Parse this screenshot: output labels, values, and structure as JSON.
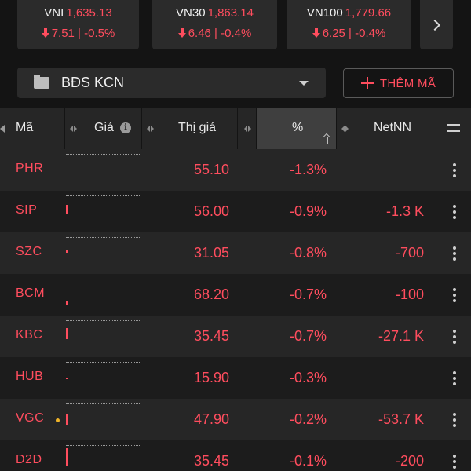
{
  "indices": [
    {
      "name": "VNI",
      "value": "1,635.13",
      "change": "7.51 | -0.5%"
    },
    {
      "name": "VN30",
      "value": "1,863.14",
      "change": "6.46 | -0.4%"
    },
    {
      "name": "VN100",
      "value": "1,779.66",
      "change": "6.25 | -0.4%"
    }
  ],
  "watchlist": {
    "name": "BĐS KCN",
    "add_label": "THÊM MÃ"
  },
  "columns": {
    "symbol": "Mã",
    "price": "Giá",
    "market_price": "Thị giá",
    "percent": "%",
    "net_foreign": "NetNN"
  },
  "rows": [
    {
      "symbol": "PHR",
      "price": "55.10",
      "percent": "-1.3%",
      "net": "",
      "has_dot": false
    },
    {
      "symbol": "SIP",
      "price": "56.00",
      "percent": "-0.9%",
      "net": "-1.3 K",
      "has_dot": false
    },
    {
      "symbol": "SZC",
      "price": "31.05",
      "percent": "-0.8%",
      "net": "-700",
      "has_dot": false
    },
    {
      "symbol": "BCM",
      "price": "68.20",
      "percent": "-0.7%",
      "net": "-100",
      "has_dot": false
    },
    {
      "symbol": "KBC",
      "price": "35.45",
      "percent": "-0.7%",
      "net": "-27.1 K",
      "has_dot": false
    },
    {
      "symbol": "HUB",
      "price": "15.90",
      "percent": "-0.3%",
      "net": "",
      "has_dot": false
    },
    {
      "symbol": "VGC",
      "price": "47.90",
      "percent": "-0.2%",
      "net": "-53.7 K",
      "has_dot": true
    },
    {
      "symbol": "D2D",
      "price": "35.45",
      "percent": "-0.1%",
      "net": "-200",
      "has_dot": false
    }
  ],
  "colors": {
    "down": "#ff4d5e",
    "background": "#141414",
    "panel": "#2b2b2b",
    "ceiling_dot": "#f0b429"
  },
  "icons": {
    "next": "chevron-right-icon",
    "folder": "folder-icon",
    "dropdown": "caret-down-icon",
    "add": "plus-icon",
    "info": "info-icon",
    "columns": "menu-icon",
    "row_menu": "kebab-icon"
  }
}
